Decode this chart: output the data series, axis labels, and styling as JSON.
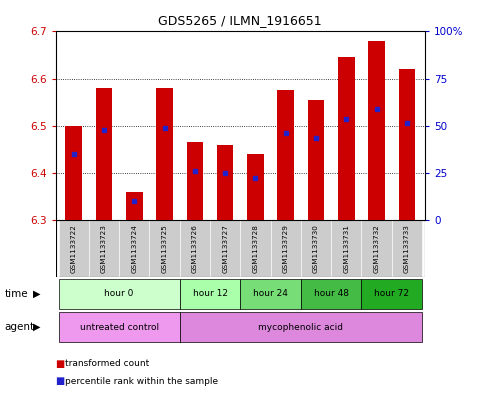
{
  "title": "GDS5265 / ILMN_1916651",
  "samples": [
    "GSM1133722",
    "GSM1133723",
    "GSM1133724",
    "GSM1133725",
    "GSM1133726",
    "GSM1133727",
    "GSM1133728",
    "GSM1133729",
    "GSM1133730",
    "GSM1133731",
    "GSM1133732",
    "GSM1133733"
  ],
  "bar_top": [
    6.5,
    6.58,
    6.36,
    6.58,
    6.465,
    6.46,
    6.44,
    6.575,
    6.555,
    6.645,
    6.68,
    6.62
  ],
  "bar_bottom": 6.3,
  "blue_marker_val": [
    6.44,
    6.49,
    6.34,
    6.495,
    6.405,
    6.4,
    6.39,
    6.485,
    6.475,
    6.515,
    6.535,
    6.505
  ],
  "ylim_left": [
    6.3,
    6.7
  ],
  "ylim_right": [
    0,
    100
  ],
  "yticks_left": [
    6.3,
    6.4,
    6.5,
    6.6,
    6.7
  ],
  "yticks_right": [
    0,
    25,
    50,
    75,
    100
  ],
  "ytick_labels_right": [
    "0",
    "25",
    "50",
    "75",
    "100%"
  ],
  "bar_color": "#cc0000",
  "blue_color": "#2222cc",
  "time_groups": [
    {
      "label": "hour 0",
      "start": 0,
      "end": 3,
      "color": "#ccffcc"
    },
    {
      "label": "hour 12",
      "start": 4,
      "end": 5,
      "color": "#aaffaa"
    },
    {
      "label": "hour 24",
      "start": 6,
      "end": 7,
      "color": "#77dd77"
    },
    {
      "label": "hour 48",
      "start": 8,
      "end": 9,
      "color": "#44bb44"
    },
    {
      "label": "hour 72",
      "start": 10,
      "end": 11,
      "color": "#22aa22"
    }
  ],
  "agent_groups": [
    {
      "label": "untreated control",
      "start": 0,
      "end": 3,
      "color": "#ee99ee"
    },
    {
      "label": "mycophenolic acid",
      "start": 4,
      "end": 11,
      "color": "#dd88dd"
    }
  ],
  "left_label_color": "#cc0000",
  "right_label_color": "#0000cc",
  "sample_bg": "#cccccc",
  "border_color": "#000000"
}
